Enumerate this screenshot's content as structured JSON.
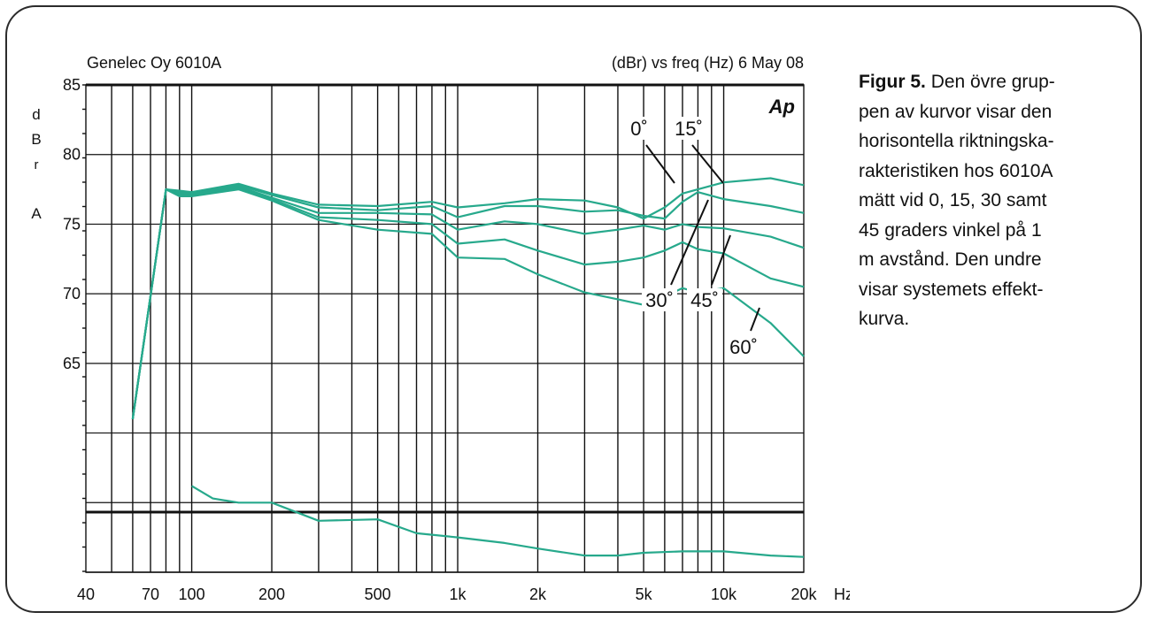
{
  "caption": {
    "label": "Figur 5.",
    "lines": [
      "Den övre grup-",
      "pen av kurvor visar den",
      "horisontella riktningska-",
      "rakteristiken hos 6010A",
      "mätt vid 0, 15, 30  samt",
      "45 graders vinkel på 1",
      "m avstånd. Den undre",
      "visar systemets effekt-",
      "kurva."
    ]
  },
  "colors": {
    "curve": "#27a98c",
    "grid": "#111111"
  },
  "chart_data": {
    "type": "line",
    "title_left": "Genelec Oy 6010A",
    "title_right_prefix": "(dBr) vs freq (Hz)",
    "title_right_date": "6 May 08",
    "logo": "Ap",
    "ylabel_letters": [
      "d",
      "B",
      "r",
      "A"
    ],
    "xunit": "Hz",
    "xscale": "log",
    "xlim": [
      40,
      20000
    ],
    "ylim": [
      50,
      85
    ],
    "grid": true,
    "xticks": [
      {
        "value": 40,
        "label": "40"
      },
      {
        "value": 70,
        "label": "70"
      },
      {
        "value": 100,
        "label": "100"
      },
      {
        "value": 200,
        "label": "200"
      },
      {
        "value": 500,
        "label": "500"
      },
      {
        "value": 1000,
        "label": "1k"
      },
      {
        "value": 2000,
        "label": "2k"
      },
      {
        "value": 5000,
        "label": "5k"
      },
      {
        "value": 10000,
        "label": "10k"
      },
      {
        "value": 20000,
        "label": "20k"
      }
    ],
    "yticks": [
      {
        "value": 85,
        "label": "85"
      },
      {
        "value": 80,
        "label": "80"
      },
      {
        "value": 75,
        "label": "75"
      },
      {
        "value": 70,
        "label": "70"
      },
      {
        "value": 65,
        "label": "65"
      }
    ],
    "annotations": [
      "0˚",
      "15˚",
      "30˚",
      "45˚",
      "60˚"
    ],
    "series": [
      {
        "name": "0˚",
        "x": [
          60,
          80,
          90,
          100,
          150,
          200,
          300,
          500,
          800,
          1000,
          1500,
          2000,
          3000,
          4000,
          5000,
          6000,
          7000,
          8000,
          10000,
          15000,
          20000
        ],
        "y": [
          61,
          77.5,
          77.4,
          77.3,
          77.9,
          77.2,
          76.4,
          76.3,
          76.6,
          76.2,
          76.5,
          76.8,
          76.7,
          76.2,
          75.4,
          76.2,
          77.2,
          77.5,
          78.0,
          78.3,
          77.8
        ]
      },
      {
        "name": "15˚",
        "x": [
          60,
          80,
          90,
          100,
          150,
          200,
          300,
          500,
          800,
          1000,
          1500,
          2000,
          3000,
          4000,
          5000,
          6000,
          7000,
          8000,
          10000,
          15000,
          20000
        ],
        "y": [
          61,
          77.5,
          77.3,
          77.2,
          77.8,
          77.1,
          76.2,
          76.0,
          76.3,
          75.5,
          76.3,
          76.3,
          75.9,
          76.0,
          75.6,
          75.4,
          76.6,
          77.3,
          76.8,
          76.3,
          75.8
        ]
      },
      {
        "name": "30˚",
        "x": [
          60,
          80,
          90,
          100,
          150,
          200,
          300,
          500,
          800,
          1000,
          1500,
          2000,
          3000,
          4000,
          5000,
          6000,
          7000,
          8000,
          10000,
          15000,
          20000
        ],
        "y": [
          61,
          77.5,
          77.2,
          77.2,
          77.7,
          76.9,
          75.8,
          75.8,
          75.7,
          74.6,
          75.2,
          75.0,
          74.3,
          74.6,
          74.9,
          74.6,
          75.0,
          74.8,
          74.7,
          74.1,
          73.3
        ]
      },
      {
        "name": "45˚",
        "x": [
          60,
          80,
          90,
          100,
          150,
          200,
          300,
          500,
          800,
          1000,
          1500,
          2000,
          3000,
          4000,
          5000,
          6000,
          7000,
          8000,
          10000,
          15000,
          20000
        ],
        "y": [
          61,
          77.5,
          77.1,
          77.1,
          77.6,
          76.8,
          75.5,
          75.3,
          75.0,
          73.6,
          73.9,
          73.1,
          72.1,
          72.3,
          72.6,
          73.1,
          73.7,
          73.2,
          72.9,
          71.1,
          70.5
        ]
      },
      {
        "name": "60˚",
        "x": [
          60,
          80,
          90,
          100,
          150,
          200,
          300,
          500,
          800,
          1000,
          1500,
          2000,
          3000,
          4000,
          5000,
          6000,
          7000,
          8000,
          10000,
          15000,
          20000
        ],
        "y": [
          61,
          77.5,
          77.0,
          77.0,
          77.5,
          76.7,
          75.3,
          74.6,
          74.3,
          72.6,
          72.5,
          71.4,
          70.1,
          69.6,
          69.2,
          69.8,
          70.4,
          70.1,
          70.4,
          67.9,
          65.5
        ]
      },
      {
        "name": "effektkurva",
        "x": [
          100,
          120,
          150,
          200,
          300,
          500,
          700,
          1000,
          1500,
          2000,
          3000,
          4000,
          5000,
          7000,
          10000,
          15000,
          20000
        ],
        "y": [
          56.2,
          55.3,
          55.0,
          55.0,
          53.7,
          53.8,
          52.8,
          52.5,
          52.1,
          51.7,
          51.2,
          51.2,
          51.4,
          51.5,
          51.5,
          51.2,
          51.1
        ]
      }
    ]
  }
}
